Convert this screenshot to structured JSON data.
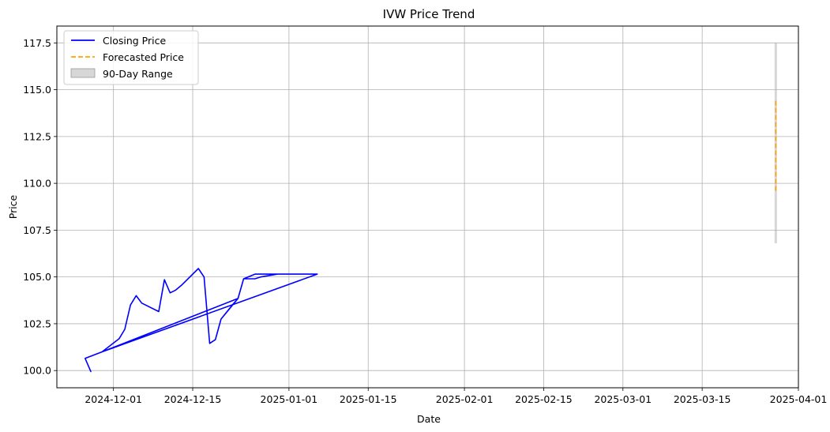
{
  "chart_data": {
    "type": "line",
    "title": "IVW Price Trend",
    "xlabel": "Date",
    "ylabel": "Price",
    "x_domain": [
      "2024-11-21",
      "2025-04-01"
    ],
    "ylim": [
      99.08,
      118.4
    ],
    "x_ticks": [
      "2024-12-01",
      "2024-12-15",
      "2025-01-01",
      "2025-01-15",
      "2025-02-01",
      "2025-02-15",
      "2025-03-01",
      "2025-03-15",
      "2025-04-01"
    ],
    "y_ticks": [
      "100.0",
      "102.5",
      "105.0",
      "107.5",
      "110.0",
      "112.5",
      "115.0",
      "117.5"
    ],
    "grid": true,
    "legend_position": "top-left",
    "series": [
      {
        "name": "Closing Price",
        "style": "solid",
        "color": "#0000ff",
        "x": [
          "2024-11-26",
          "2024-11-27",
          "2024-11-26",
          "2024-11-29",
          "2024-12-02",
          "2024-12-03",
          "2024-12-04",
          "2024-12-05",
          "2024-12-06",
          "2024-12-09",
          "2024-12-10",
          "2024-12-11",
          "2024-12-12",
          "2024-12-13",
          "2024-12-16",
          "2024-12-17",
          "2024-12-18",
          "2024-12-19",
          "2024-12-20",
          "2024-12-23",
          "2024-12-24",
          "2024-12-26",
          "2024-12-27",
          "2024-12-30",
          "2024-12-31",
          "2025-01-02",
          "2025-01-03",
          "2025-01-06",
          "2024-11-29",
          "2024-12-23",
          "2024-12-20",
          "2024-12-22",
          "2024-12-23",
          "2024-12-24",
          "2024-12-26",
          "2024-12-27",
          "2024-12-30"
        ],
        "y": [
          100.65,
          99.95,
          100.65,
          101.0,
          101.7,
          102.2,
          103.5,
          104.0,
          103.6,
          103.15,
          104.85,
          104.15,
          104.3,
          104.55,
          105.45,
          105.0,
          101.45,
          101.65,
          102.75,
          103.85,
          104.9,
          105.15,
          105.15,
          105.15,
          105.15,
          105.15,
          105.15,
          105.15,
          101.0,
          103.85,
          102.75,
          103.5,
          103.85,
          104.9,
          104.9,
          105.0,
          105.15
        ]
      },
      {
        "name": "Forecasted Price",
        "style": "dashed",
        "color": "#ffa500",
        "x": [
          "2025-03-28",
          "2025-03-28"
        ],
        "y": [
          109.6,
          114.4
        ]
      }
    ],
    "range_band": {
      "name": "90-Day Range",
      "color": "#b0b0b0",
      "x": "2025-03-28",
      "low": 106.8,
      "high": 117.5
    }
  }
}
